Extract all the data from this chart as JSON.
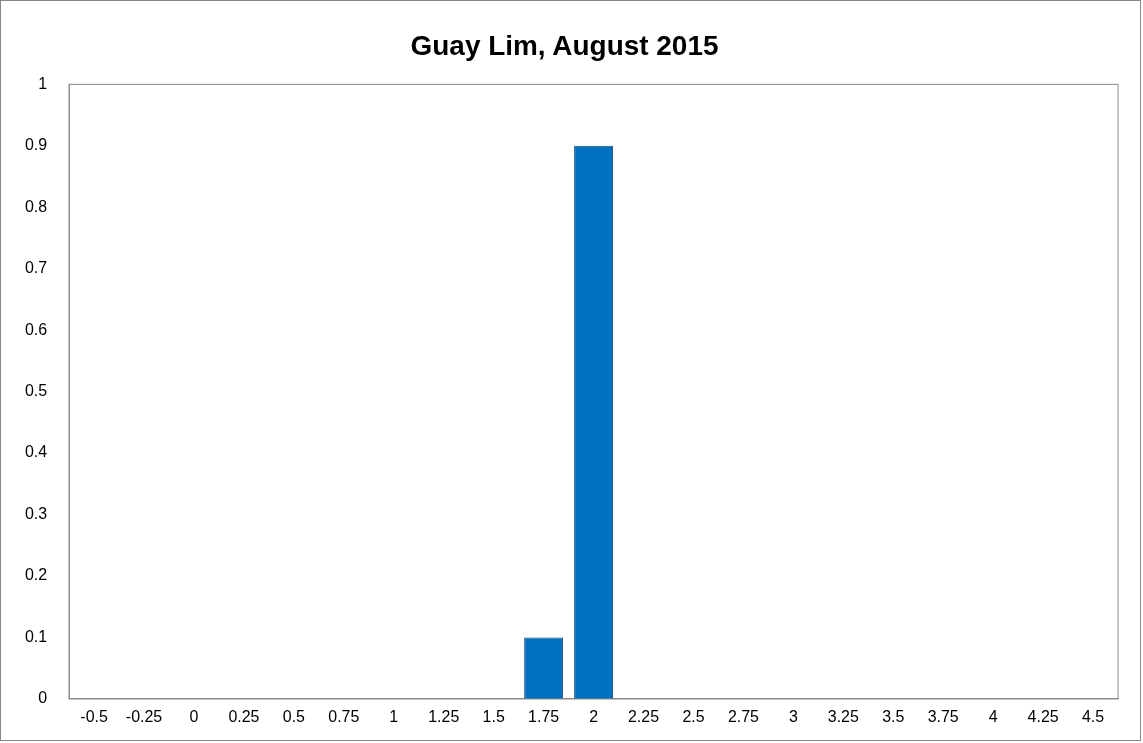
{
  "chart_data": {
    "type": "bar",
    "title": "Guay Lim, August 2015",
    "categories": [
      "-0.5",
      "-0.25",
      "0",
      "0.25",
      "0.5",
      "0.75",
      "1",
      "1.25",
      "1.5",
      "1.75",
      "2",
      "2.25",
      "2.5",
      "2.75",
      "3",
      "3.25",
      "3.5",
      "3.75",
      "4",
      "4.25",
      "4.5"
    ],
    "values": [
      0,
      0,
      0,
      0,
      0,
      0,
      0,
      0,
      0,
      0.1,
      0.9,
      0,
      0,
      0,
      0,
      0,
      0,
      0,
      0,
      0,
      0
    ],
    "color": "#0070c0",
    "ylim": [
      0,
      1
    ],
    "yticks": [
      0,
      0.1,
      0.2,
      0.3,
      0.4,
      0.5,
      0.6,
      0.7,
      0.8,
      0.9,
      1
    ],
    "grid": false,
    "legend": false
  }
}
